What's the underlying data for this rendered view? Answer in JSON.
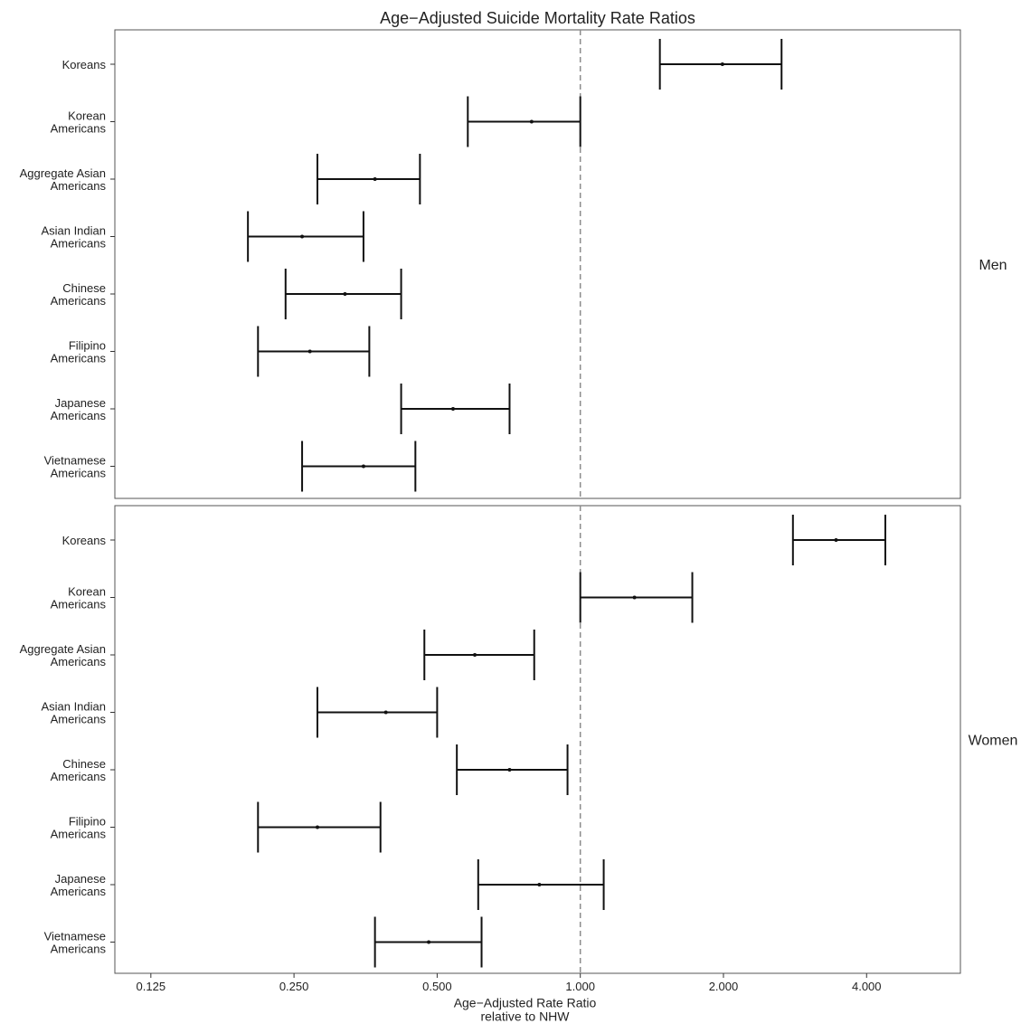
{
  "chart_data": {
    "type": "forest",
    "title": "Age−Adjusted Suicide Mortality Rate Ratios",
    "xlabel": [
      "Age−Adjusted Rate Ratio",
      "relative to NHW"
    ],
    "x_scale": "log2",
    "xlim": [
      0.105,
      6.3
    ],
    "x_ticks": [
      0.125,
      0.25,
      0.5,
      1,
      2,
      4
    ],
    "x_tick_labels": [
      "0.125",
      "0.250",
      "0.500",
      "1.000",
      "2.000",
      "4.000"
    ],
    "reference_line": 1,
    "categories": [
      [
        "Koreans"
      ],
      [
        "Korean",
        "Americans"
      ],
      [
        "Aggregate Asian",
        "Americans"
      ],
      [
        "Asian Indian",
        "Americans"
      ],
      [
        "Chinese",
        "Americans"
      ],
      [
        "Filipino",
        "Americans"
      ],
      [
        "Japanese",
        "Americans"
      ],
      [
        "Vietnamese",
        "Americans"
      ]
    ],
    "panels": [
      {
        "label": "Men",
        "estimates": [
          1.99,
          0.79,
          0.37,
          0.26,
          0.32,
          0.27,
          0.54,
          0.35
        ],
        "lower": [
          1.47,
          0.58,
          0.28,
          0.2,
          0.24,
          0.21,
          0.42,
          0.26
        ],
        "upper": [
          2.65,
          1.0,
          0.46,
          0.35,
          0.42,
          0.36,
          0.71,
          0.45
        ]
      },
      {
        "label": "Women",
        "estimates": [
          3.45,
          1.3,
          0.6,
          0.39,
          0.71,
          0.28,
          0.82,
          0.48
        ],
        "lower": [
          2.8,
          1.0,
          0.47,
          0.28,
          0.55,
          0.21,
          0.61,
          0.37
        ],
        "upper": [
          4.38,
          1.72,
          0.8,
          0.5,
          0.94,
          0.38,
          1.12,
          0.62
        ]
      }
    ]
  }
}
